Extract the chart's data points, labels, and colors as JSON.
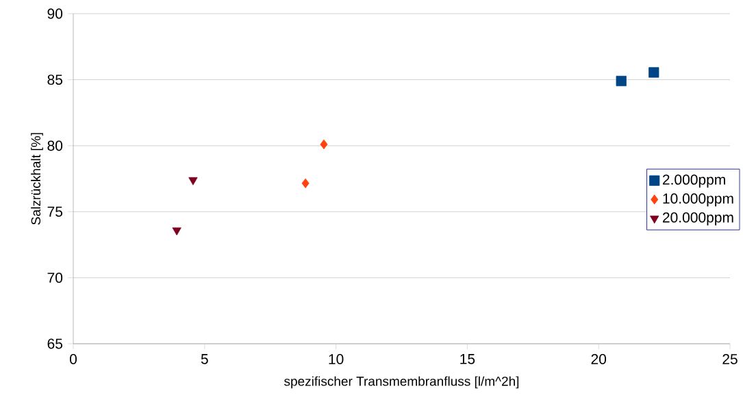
{
  "chart_data": {
    "type": "scatter",
    "xlabel": "spezifischer Transmembranfluss [l/m^2h]",
    "ylabel": "Salzrückhalt [%]",
    "xlim": [
      0,
      25
    ],
    "xticks": [
      0,
      5,
      10,
      15,
      20,
      25
    ],
    "ylim": [
      65,
      90
    ],
    "yticks": [
      65,
      70,
      75,
      80,
      85,
      90
    ],
    "grid": "y",
    "legend": "right",
    "series": [
      {
        "name": "2.000ppm",
        "color": "#004586",
        "marker": "square",
        "x": [
          20.86,
          22.1
        ],
        "values": [
          84.9,
          85.55
        ]
      },
      {
        "name": "10.000ppm",
        "color": "#ff420e",
        "marker": "diamond",
        "x": [
          8.84,
          9.54
        ],
        "values": [
          77.15,
          80.1
        ]
      },
      {
        "name": "20.000ppm",
        "color": "#7e0021",
        "marker": "triangle",
        "x": [
          3.94,
          4.56
        ],
        "values": [
          73.6,
          77.4
        ]
      }
    ]
  }
}
